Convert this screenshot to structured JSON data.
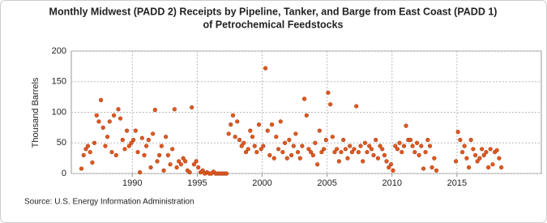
{
  "chart_data": {
    "type": "scatter",
    "title": [
      "Monthly Midwest (PADD 2) Receipts by Pipeline, Tanker, and Barge from East Coast (PADD 1)",
      "of Petrochemical Feedstocks"
    ],
    "y_label": "Thousand Barrels",
    "source": "Source: U.S. Energy Information Administration",
    "color": "#e05a20",
    "grid": true,
    "xlim": [
      1985.3,
      2021.5
    ],
    "xticks": [
      1990,
      1995,
      2000,
      2005,
      2010,
      2015
    ],
    "ylim": [
      0,
      200
    ],
    "yticks": [
      0,
      50,
      100,
      150,
      200
    ],
    "x": [
      1986.08,
      1986.25,
      1986.42,
      1986.58,
      1986.75,
      1986.92,
      1987.08,
      1987.25,
      1987.42,
      1987.58,
      1987.75,
      1987.92,
      1988.08,
      1988.25,
      1988.42,
      1988.58,
      1988.75,
      1988.92,
      1989.08,
      1989.25,
      1989.42,
      1989.58,
      1989.75,
      1989.92,
      1990.08,
      1990.25,
      1990.42,
      1990.58,
      1990.75,
      1990.92,
      1991.08,
      1991.25,
      1991.42,
      1991.58,
      1991.75,
      1991.92,
      1992.08,
      1992.25,
      1992.42,
      1992.58,
      1992.75,
      1992.92,
      1993.08,
      1993.25,
      1993.42,
      1993.58,
      1993.75,
      1993.92,
      1994.08,
      1994.25,
      1994.42,
      1994.58,
      1994.75,
      1994.92,
      1995.08,
      1995.25,
      1995.42,
      1995.58,
      1995.75,
      1995.92,
      1996.08,
      1996.25,
      1996.42,
      1996.58,
      1996.75,
      1996.92,
      1997.08,
      1997.25,
      1997.42,
      1997.58,
      1997.75,
      1997.92,
      1998.08,
      1998.25,
      1998.42,
      1998.58,
      1998.75,
      1998.92,
      1999.08,
      1999.25,
      1999.42,
      1999.58,
      1999.75,
      1999.92,
      2000.08,
      2000.25,
      2000.42,
      2000.58,
      2000.75,
      2000.92,
      2001.08,
      2001.25,
      2001.42,
      2001.58,
      2001.75,
      2001.92,
      2002.08,
      2002.25,
      2002.42,
      2002.58,
      2002.75,
      2002.92,
      2003.08,
      2003.25,
      2003.42,
      2003.58,
      2003.75,
      2003.92,
      2004.08,
      2004.25,
      2004.42,
      2004.58,
      2004.75,
      2004.92,
      2005.08,
      2005.25,
      2005.42,
      2005.58,
      2005.75,
      2005.92,
      2006.08,
      2006.25,
      2006.42,
      2006.58,
      2006.75,
      2006.92,
      2007.08,
      2007.25,
      2007.42,
      2007.58,
      2007.75,
      2007.92,
      2008.08,
      2008.25,
      2008.42,
      2008.58,
      2008.75,
      2008.92,
      2009.08,
      2009.25,
      2009.42,
      2009.58,
      2009.75,
      2009.92,
      2010.08,
      2010.25,
      2010.42,
      2010.58,
      2010.75,
      2010.92,
      2011.08,
      2011.25,
      2011.42,
      2011.58,
      2011.75,
      2011.92,
      2012.08,
      2012.25,
      2012.42,
      2012.58,
      2012.75,
      2012.92,
      2013.08,
      2013.25,
      2013.42,
      2014.92,
      2015.08,
      2015.25,
      2015.42,
      2015.58,
      2015.75,
      2015.92,
      2016.08,
      2016.25,
      2016.42,
      2016.58,
      2016.75,
      2016.92,
      2017.08,
      2017.25,
      2017.42,
      2017.58,
      2017.75,
      2017.92,
      2018.08,
      2018.25,
      2018.42
    ],
    "values": [
      8,
      30,
      40,
      45,
      35,
      18,
      50,
      95,
      85,
      120,
      75,
      45,
      60,
      85,
      35,
      95,
      30,
      105,
      90,
      55,
      40,
      70,
      45,
      50,
      55,
      70,
      35,
      2,
      58,
      30,
      45,
      55,
      10,
      65,
      104,
      20,
      30,
      45,
      5,
      60,
      30,
      15,
      40,
      105,
      10,
      20,
      15,
      25,
      20,
      5,
      2,
      108,
      15,
      20,
      10,
      2,
      5,
      0,
      2,
      0,
      0,
      3,
      0,
      0,
      0,
      0,
      0,
      0,
      65,
      80,
      95,
      60,
      85,
      55,
      45,
      50,
      35,
      40,
      70,
      60,
      45,
      35,
      80,
      40,
      45,
      172,
      70,
      30,
      80,
      25,
      60,
      40,
      85,
      35,
      50,
      25,
      55,
      30,
      45,
      65,
      35,
      25,
      45,
      122,
      95,
      40,
      35,
      30,
      50,
      15,
      70,
      35,
      40,
      55,
      132,
      113,
      60,
      35,
      40,
      20,
      35,
      55,
      40,
      25,
      45,
      35,
      40,
      110,
      35,
      45,
      20,
      50,
      35,
      45,
      40,
      30,
      55,
      25,
      45,
      40,
      30,
      20,
      10,
      15,
      5,
      45,
      40,
      50,
      35,
      45,
      78,
      55,
      55,
      45,
      35,
      50,
      30,
      45,
      8,
      35,
      55,
      45,
      10,
      25,
      5,
      20,
      68,
      55,
      35,
      45,
      25,
      10,
      55,
      40,
      30,
      20,
      25,
      40,
      30,
      35,
      10,
      40,
      15,
      35,
      38,
      25,
      10
    ]
  }
}
